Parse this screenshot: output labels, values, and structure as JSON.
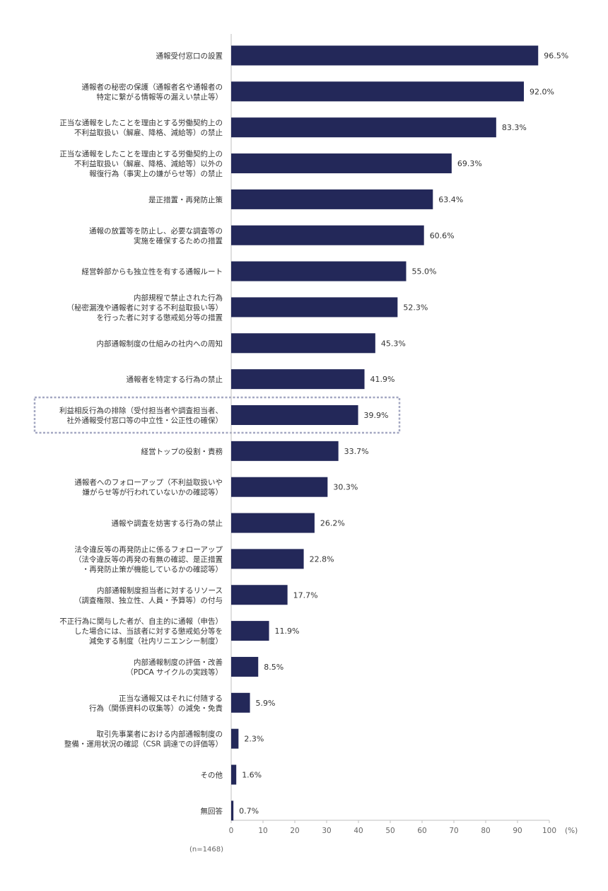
{
  "chart_data": {
    "type": "bar",
    "orientation": "horizontal",
    "categories": [
      [
        "通報受付窓口の設置"
      ],
      [
        "通報者の秘密の保護（通報者名や通報者の",
        "特定に繋がる情報等の漏えい禁止等）"
      ],
      [
        "正当な通報をしたことを理由とする労働契約上の",
        "不利益取扱い（解雇、降格、減給等）の禁止"
      ],
      [
        "正当な通報をしたことを理由とする労働契約上の",
        "不利益取扱い（解雇、降格、減給等）以外の",
        "報復行為（事実上の嫌がらせ等）の禁止"
      ],
      [
        "是正措置・再発防止策"
      ],
      [
        "通報の放置等を防止し、必要な調査等の",
        "実施を確保するための措置"
      ],
      [
        "経営幹部からも独立性を有する通報ルート"
      ],
      [
        "内部規程で禁止された行為",
        "（秘密漏洩や通報者に対する不利益取扱い等）",
        "を行った者に対する懲戒処分等の措置"
      ],
      [
        "内部通報制度の仕組みの社内への周知"
      ],
      [
        "通報者を特定する行為の禁止"
      ],
      [
        "利益相反行為の排除（受付担当者や調査担当者、",
        "社外通報受付窓口等の中立性・公正性の確保）"
      ],
      [
        "経営トップの役割・責務"
      ],
      [
        "通報者へのフォローアップ（不利益取扱いや",
        "嫌がらせ等が行われていないかの確認等）"
      ],
      [
        "通報や調査を妨害する行為の禁止"
      ],
      [
        "法令違反等の再発防止に係るフォローアップ",
        "（法令違反等の再発の有無の確認、是正措置",
        "・再発防止策が機能しているかの確認等）"
      ],
      [
        "内部通報制度担当者に対するリソース",
        "（調査権限、独立性、人員・予算等）の付与"
      ],
      [
        "不正行為に関与した者が、自主的に通報（申告）",
        "した場合には、当該者に対する懲戒処分等を",
        "減免する制度（社内リニエンシー制度）"
      ],
      [
        "内部通報制度の評価・改善",
        "（PDCA サイクルの実践等）"
      ],
      [
        "正当な通報又はそれに付随する",
        "行為（関係資料の収集等）の減免・免責"
      ],
      [
        "取引先事業者における内部通報制度の",
        "整備・運用状況の確認（CSR 調達での評価等）"
      ],
      [
        "その他"
      ],
      [
        "無回答"
      ]
    ],
    "values": [
      96.5,
      92.0,
      83.3,
      69.3,
      63.4,
      60.6,
      55.0,
      52.3,
      45.3,
      41.9,
      39.9,
      33.7,
      30.3,
      26.2,
      22.8,
      17.7,
      11.9,
      8.5,
      5.9,
      2.3,
      1.6,
      0.7
    ],
    "value_labels": [
      "96.5%",
      "92.0%",
      "83.3%",
      "69.3%",
      "63.4%",
      "60.6%",
      "55.0%",
      "52.3%",
      "45.3%",
      "41.9%",
      "39.9%",
      "33.7%",
      "30.3%",
      "26.2%",
      "22.8%",
      "17.7%",
      "11.9%",
      "8.5%",
      "5.9%",
      "2.3%",
      "1.6%",
      "0.7%"
    ],
    "highlighted_index": 10,
    "xlim": [
      0,
      100
    ],
    "x_ticks": [
      0,
      10,
      20,
      30,
      40,
      50,
      60,
      70,
      80,
      90,
      100
    ],
    "x_unit": "(%)",
    "note": "(n=1468)",
    "bar_color": "#232859",
    "highlight_border_color": "#a4a8c2",
    "grid": false
  }
}
